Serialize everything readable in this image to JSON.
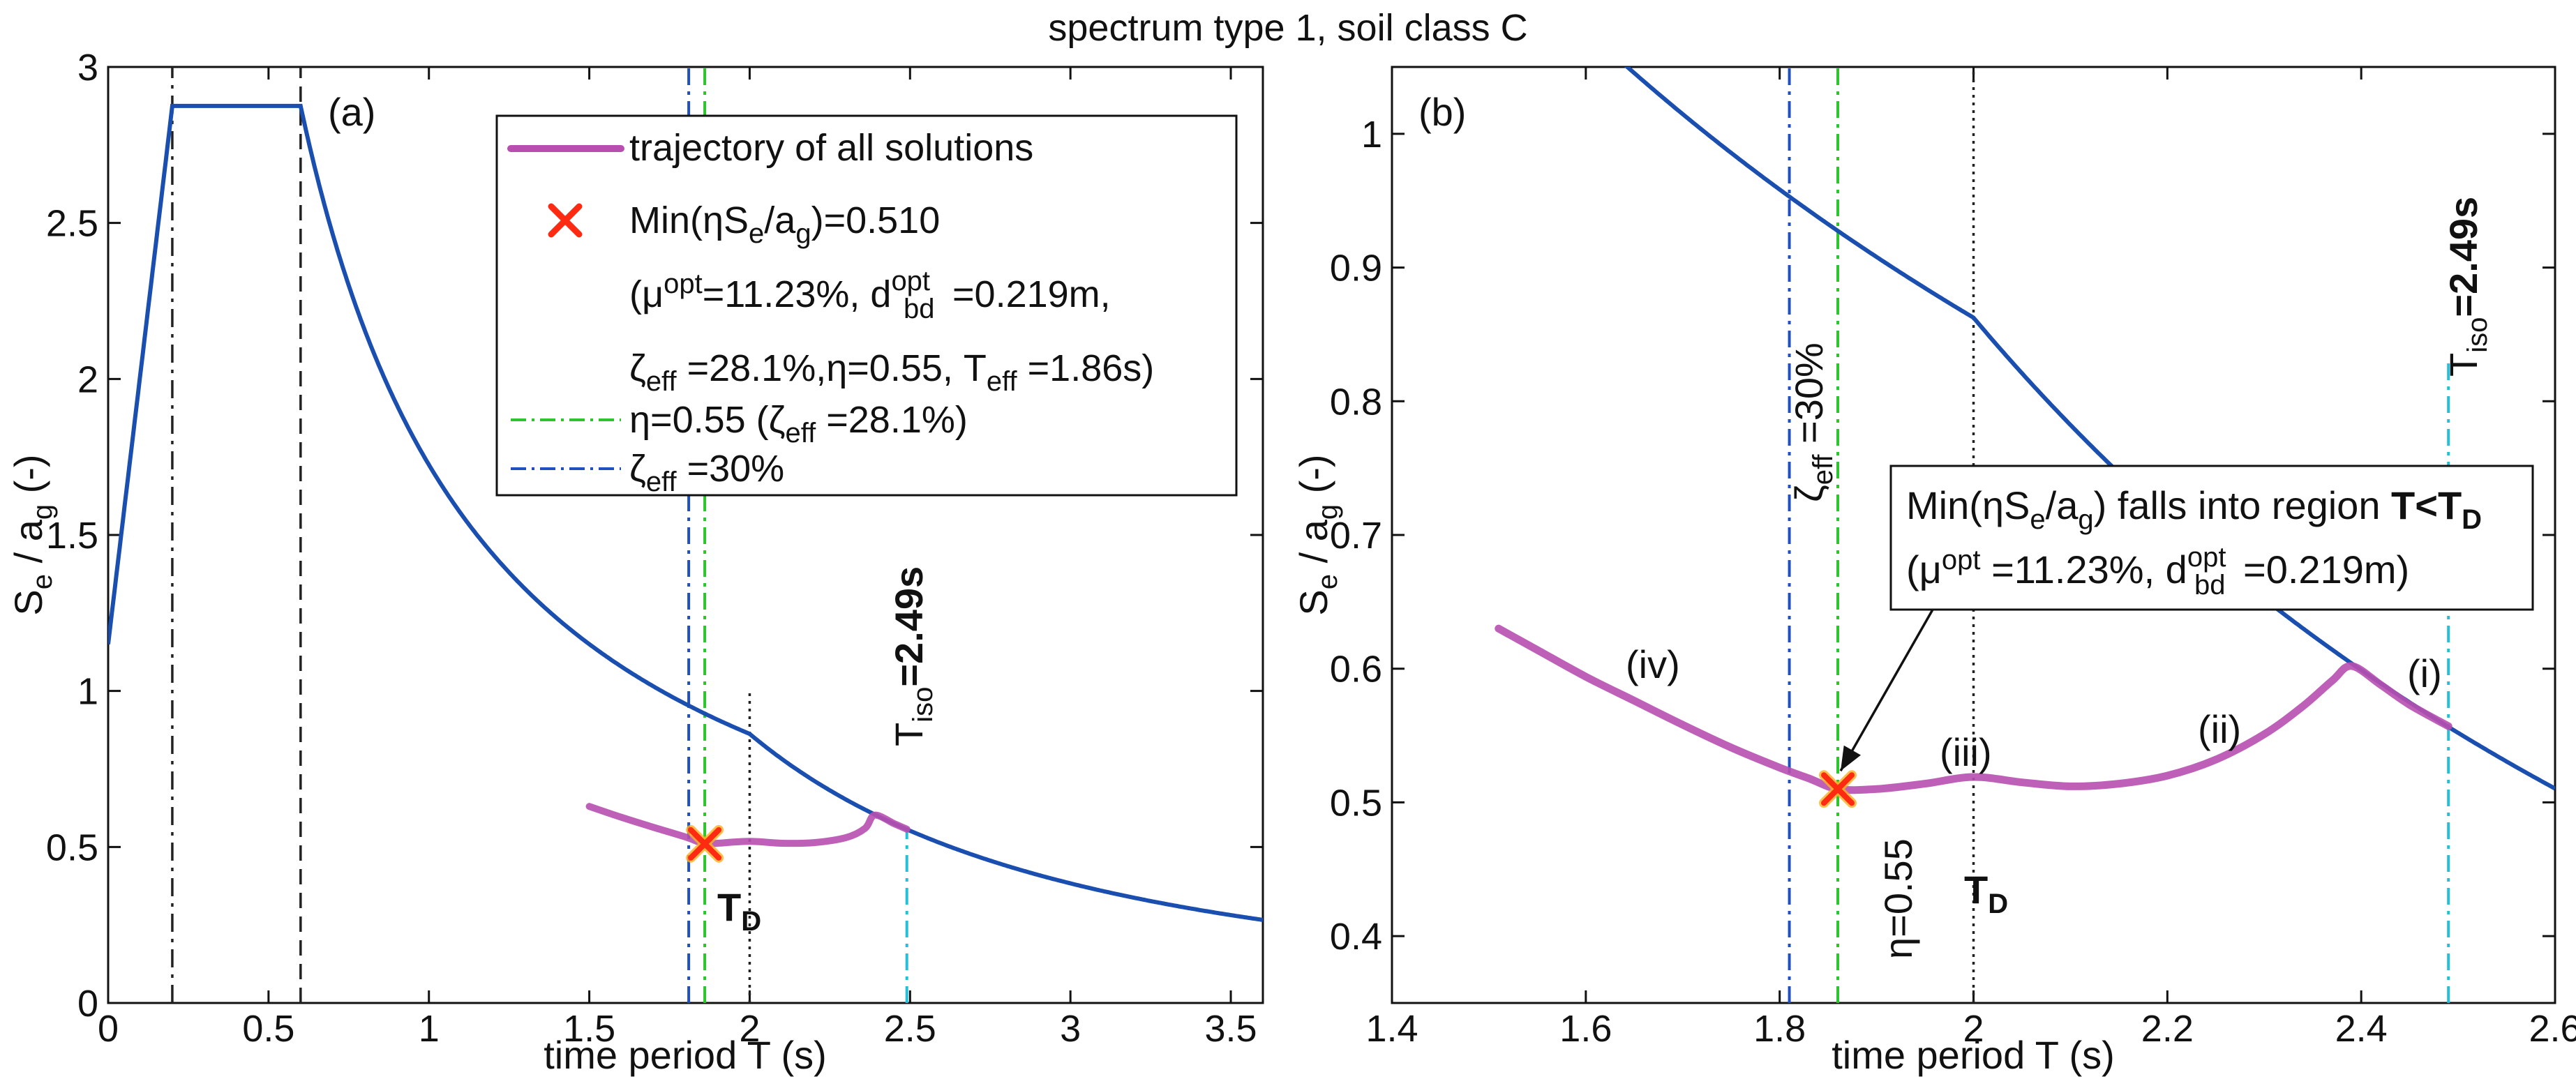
{
  "figure_title": "spectrum type 1, soil class C",
  "colors": {
    "spectrum": "#1a4fb0",
    "trajectory": "#b84fb0",
    "marker": "#ff2a12",
    "eta_line": "#2ec42e",
    "zeta30_line": "#2050c0",
    "tiso_line": "#25c0d8",
    "td_line": "#222222"
  },
  "chart_data": [
    {
      "type": "line",
      "panel_label": "(a)",
      "xlabel": "time period T (s)",
      "ylabel_main": "S",
      "ylabel_sub1": "e",
      "ylabel_mid": " / a",
      "ylabel_sub2": "g",
      "ylabel_unit": "  (-)",
      "xlim": [
        0,
        3.6
      ],
      "ylim": [
        0,
        3
      ],
      "xticks": [
        0,
        0.5,
        1,
        1.5,
        2,
        2.5,
        3,
        3.5
      ],
      "xtick_labels": [
        "0",
        "0.5",
        "1",
        "1.5",
        "2",
        "2.5",
        "3",
        "3.5"
      ],
      "yticks": [
        0,
        0.5,
        1,
        1.5,
        2,
        2.5,
        3
      ],
      "ytick_labels": [
        "0",
        "0.5",
        "1",
        "1.5",
        "2",
        "2.5",
        "3"
      ],
      "spectrum_params": {
        "ag_factor": 1.15,
        "S": 1.15,
        "TB": 0.2,
        "TC": 0.6,
        "TD": 2.0,
        "eta": 1.0
      },
      "series": [
        {
          "name": "spectrum",
          "kind": "spectrum"
        },
        {
          "name": "trajectory of all solutions",
          "kind": "trajectory",
          "x": [
            1.5,
            1.6,
            1.7,
            1.8,
            1.86,
            1.9,
            2.0,
            2.1,
            2.2,
            2.3,
            2.36,
            2.39,
            2.45,
            2.49
          ],
          "y": [
            0.63,
            0.595,
            0.563,
            0.532,
            0.51,
            0.512,
            0.518,
            0.512,
            0.514,
            0.53,
            0.56,
            0.602,
            0.575,
            0.557
          ]
        }
      ],
      "vlines": [
        {
          "x": 0.2,
          "style": "dashdot-black"
        },
        {
          "x": 0.6,
          "style": "dashed-black"
        },
        {
          "x": 1.86,
          "style": "dashdot-green"
        },
        {
          "x": 1.81,
          "style": "dashdot-blue"
        },
        {
          "x": 2.0,
          "style": "dotted-black",
          "y_to": 1.0
        },
        {
          "x": 2.49,
          "style": "dashdot-cyan",
          "y_to": 0.55
        }
      ],
      "marker": {
        "x": 1.86,
        "y": 0.51
      },
      "annotations": {
        "td_main": "T",
        "td_sub": "D",
        "tiso_main": "T",
        "tiso_sub": "iso",
        "tiso_value": "=2.49s"
      },
      "legend": {
        "traj_label": "trajectory of all solutions",
        "min_label_a": "Min(ηS",
        "min_label_b": "e",
        "min_label_c": "/a",
        "min_label_d": "g",
        "min_label_e": ")=0.510",
        "opt_line1_a": "(μ",
        "opt_line1_b": "opt",
        "opt_line1_c": "=11.23%, d",
        "opt_line1_d": "opt",
        "opt_line1_e": "bd",
        "opt_line1_f": "=0.219m,",
        "opt_line2_a": "ζ",
        "opt_line2_b": "eff",
        "opt_line2_c": " =28.1%,η=0.55, T",
        "opt_line2_d": "eff",
        "opt_line2_e": " =1.86s)",
        "eta_label_a": "η=0.55 (ζ",
        "eta_label_b": "eff",
        "eta_label_c": " =28.1%)",
        "zeta_label_a": "ζ",
        "zeta_label_b": "eff",
        "zeta_label_c": " =30%"
      }
    },
    {
      "type": "line",
      "panel_label": "(b)",
      "xlabel": "time period T (s)",
      "ylabel_main": "S",
      "ylabel_sub1": "e",
      "ylabel_mid": " / a",
      "ylabel_sub2": "g",
      "ylabel_unit": "  (-)",
      "xlim": [
        1.4,
        2.6
      ],
      "ylim": [
        0.35,
        1.05
      ],
      "xticks": [
        1.4,
        1.6,
        1.8,
        2.0,
        2.2,
        2.4,
        2.6
      ],
      "xtick_labels": [
        "1.4",
        "1.6",
        "1.8",
        "2",
        "2.2",
        "2.4",
        "2.6"
      ],
      "yticks": [
        0.4,
        0.5,
        0.6,
        0.7,
        0.8,
        0.9,
        1.0
      ],
      "ytick_labels": [
        "0.4",
        "0.5",
        "0.6",
        "0.7",
        "0.8",
        "0.9",
        "1"
      ],
      "series": [
        {
          "name": "spectrum",
          "kind": "spectrum"
        },
        {
          "name": "trajectory of all solutions",
          "kind": "trajectory",
          "x": [
            1.51,
            1.55,
            1.6,
            1.65,
            1.7,
            1.75,
            1.8,
            1.83,
            1.86,
            1.9,
            1.95,
            2.0,
            2.05,
            2.1,
            2.15,
            2.2,
            2.25,
            2.3,
            2.34,
            2.37,
            2.39,
            2.42,
            2.45,
            2.49
          ],
          "y": [
            0.63,
            0.614,
            0.594,
            0.576,
            0.558,
            0.541,
            0.526,
            0.518,
            0.51,
            0.51,
            0.514,
            0.519,
            0.515,
            0.512,
            0.514,
            0.52,
            0.532,
            0.551,
            0.572,
            0.591,
            0.602,
            0.588,
            0.573,
            0.557
          ]
        }
      ],
      "vlines": [
        {
          "x": 1.81,
          "style": "dashdot-blue"
        },
        {
          "x": 1.86,
          "style": "dashdot-green"
        },
        {
          "x": 2.0,
          "style": "dotted-black"
        },
        {
          "x": 2.49,
          "style": "dashdot-cyan",
          "y_to": 0.83
        }
      ],
      "marker": {
        "x": 1.86,
        "y": 0.51
      },
      "region_labels": [
        "(i)",
        "(ii)",
        "(iii)",
        "(iv)"
      ],
      "annotations": {
        "td_main": "T",
        "td_sub": "D",
        "tiso_main": "T",
        "tiso_sub": "iso",
        "tiso_value": "=2.49s",
        "zeta_vert_a": "ζ",
        "zeta_vert_b": "eff",
        "zeta_vert_c": " =30%",
        "eta_vert": "η=0.55",
        "box_line1_a": "Min(ηS",
        "box_line1_b": "e",
        "box_line1_c": "/a",
        "box_line1_d": "g",
        "box_line1_e": ") falls into region ",
        "box_line1_f": "T<T",
        "box_line1_g": "D",
        "box_line2_a": "(μ",
        "box_line2_b": "opt",
        "box_line2_c": " =11.23%, d",
        "box_line2_d": "opt",
        "box_line2_e": "bd",
        "box_line2_f": "=0.219m)"
      }
    }
  ]
}
